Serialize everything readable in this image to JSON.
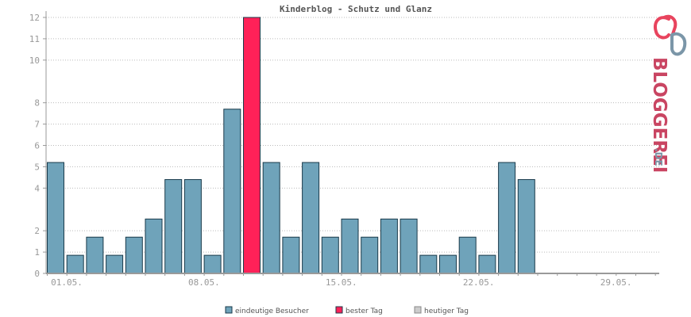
{
  "chart_data": {
    "type": "bar",
    "title": "Kinderblog - Schutz und Glanz",
    "xlabel": "",
    "ylabel": "",
    "ylim": [
      0,
      12
    ],
    "y_ticks": [
      0,
      1,
      2,
      4,
      5,
      6,
      7,
      8,
      10,
      11,
      12
    ],
    "x_tick_labels": [
      "01.05.",
      "08.05.",
      "15.05.",
      "22.05.",
      "29.05."
    ],
    "days": 31,
    "values": [
      5.2,
      0.85,
      1.7,
      0.85,
      1.7,
      2.55,
      4.4,
      4.4,
      0.85,
      7.7,
      12,
      5.2,
      1.7,
      5.2,
      1.7,
      2.55,
      1.7,
      2.55,
      2.55,
      0.85,
      0.85,
      1.7,
      0.85,
      5.2,
      4.4
    ],
    "best_day_index": 10,
    "grid": true,
    "legend_position": "bottom",
    "colors": {
      "visitors": "#6fa3ba",
      "best": "#ff2158",
      "today": "#cccccc",
      "bar_border": "#1a3a4a",
      "grid": "#bbbbbb",
      "axis": "#999999"
    }
  },
  "legend": {
    "visitors": "eindeutige Besucher",
    "best": "bester Tag",
    "today": "heutiger Tag"
  },
  "logo": {
    "text_main": "BLOGGEREI",
    "text_suffix": ".DE",
    "icon": "bloggerei-logo-icon"
  }
}
